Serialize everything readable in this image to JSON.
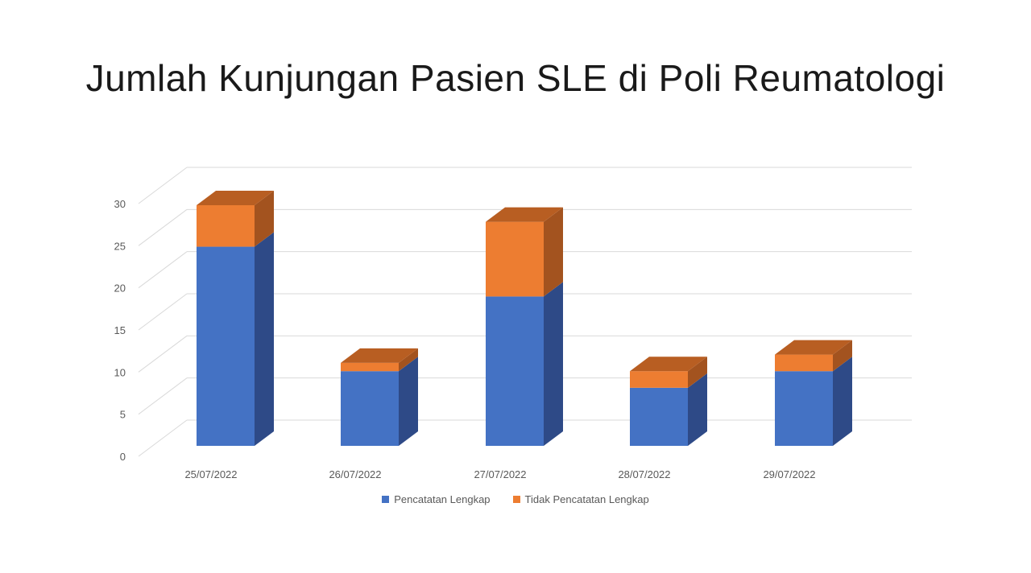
{
  "title": "Jumlah Kunjungan Pasien SLE di Poli Reumatologi",
  "chart_data": {
    "type": "bar",
    "stacked": true,
    "three_d": true,
    "title": "Jumlah Kunjungan Pasien SLE di Poli Reumatologi",
    "categories": [
      "25/07/2022",
      "26/07/2022",
      "27/07/2022",
      "28/07/2022",
      "29/07/2022"
    ],
    "series": [
      {
        "name": "Pencatatan Lengkap",
        "values": [
          24,
          9,
          18,
          7,
          9
        ],
        "color": "#4472C4",
        "side_color": "#2E4A87",
        "top_color": "#3A60A8"
      },
      {
        "name": "Tidak Pencatatan Lengkap",
        "values": [
          5,
          1,
          9,
          2,
          2
        ],
        "color": "#ED7D31",
        "side_color": "#A3531F",
        "top_color": "#B85E22"
      }
    ],
    "ylim": [
      0,
      30
    ],
    "yticks": [
      "0",
      "5",
      "10",
      "15",
      "20",
      "25",
      "30"
    ],
    "grid": true,
    "legend_position": "bottom"
  }
}
